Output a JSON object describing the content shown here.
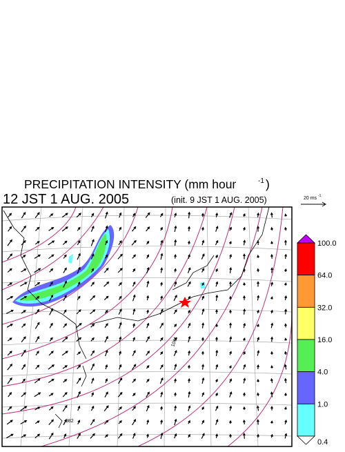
{
  "title": {
    "main": "PRECIPITATION INTENSITY (mm hour",
    "exponent": "-1",
    "close": ")"
  },
  "time": "12 JST 1 AUG. 2005",
  "init": "(init. 9 JST 1 AUG. 2005)",
  "vector_scale": {
    "label": "20 ms",
    "exponent": "-1"
  },
  "colorbar": {
    "colors": [
      "#c000ff",
      "#ff0000",
      "#ff9933",
      "#ffff66",
      "#55ee55",
      "#6666ff",
      "#66ffff",
      "#ffffff"
    ],
    "labels": [
      "100.0",
      "64.0",
      "32.0",
      "16.0",
      "4.0",
      "1.0",
      "0.4"
    ]
  },
  "contour_labels": [
    "1011",
    "982"
  ]
}
